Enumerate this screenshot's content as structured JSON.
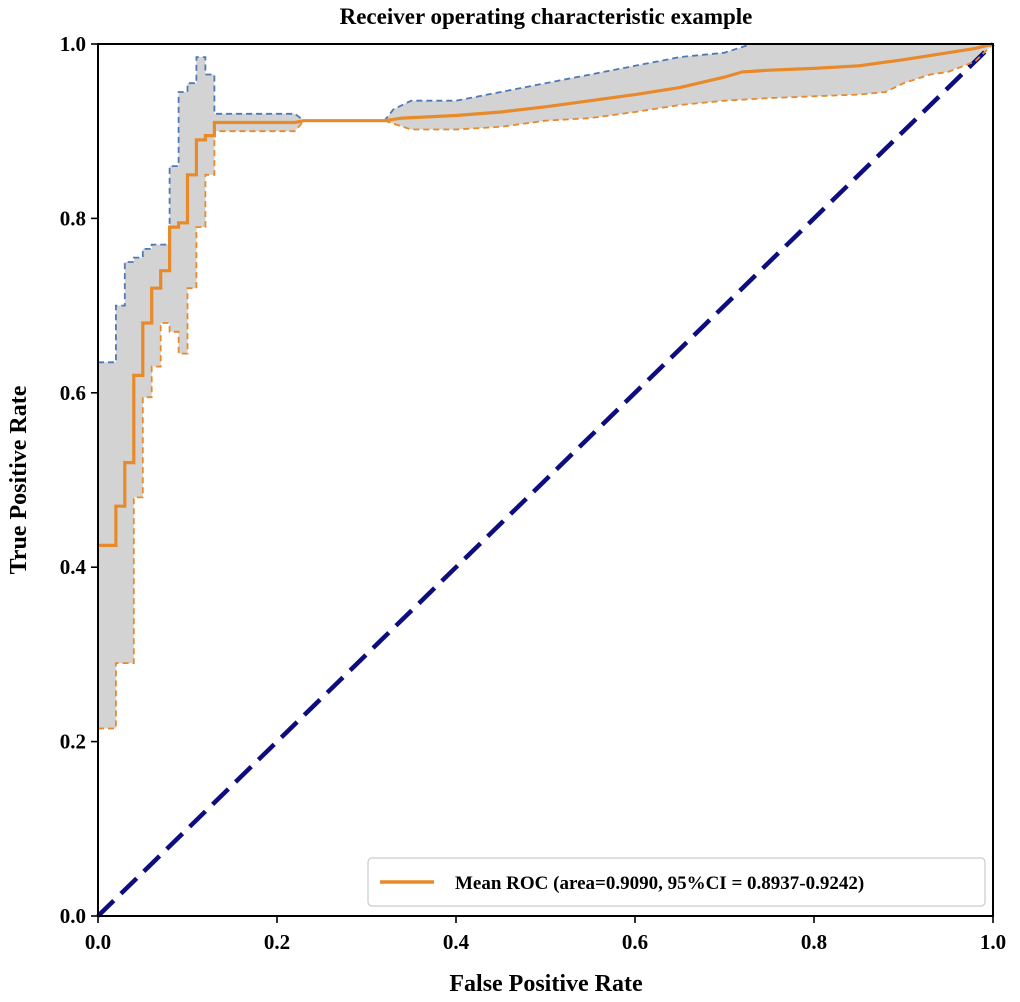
{
  "chart_data": {
    "type": "line",
    "title": "Receiver operating characteristic example",
    "xlabel": "False Positive Rate",
    "ylabel": "True Positive Rate",
    "xlim": [
      0,
      1
    ],
    "ylim": [
      0,
      1
    ],
    "xticks": [
      0.0,
      0.2,
      0.4,
      0.6,
      0.8,
      1.0
    ],
    "yticks": [
      0.0,
      0.2,
      0.4,
      0.6,
      0.8,
      1.0
    ],
    "x_tick_labels": [
      "0.0",
      "0.2",
      "0.4",
      "0.6",
      "0.8",
      "1.0"
    ],
    "y_tick_labels": [
      "0.0",
      "0.2",
      "0.4",
      "0.6",
      "0.8",
      "1.0"
    ],
    "grid": false,
    "legend": {
      "position": "bottom-right",
      "entries": [
        "Mean ROC (area=0.9090, 95%CI = 0.8937-0.9242)"
      ]
    },
    "colors": {
      "mean": "#e8892a",
      "upper": "#4e79b4",
      "lower": "#e8892a",
      "band": "#d3d3d3",
      "chance": "#0d0d80"
    },
    "series": [
      {
        "name": "Mean ROC (area=0.9090, 95%CI = 0.8937-0.9242)",
        "role": "mean",
        "x": [
          0,
          0.02,
          0.02,
          0.03,
          0.03,
          0.04,
          0.04,
          0.05,
          0.05,
          0.06,
          0.06,
          0.07,
          0.07,
          0.08,
          0.08,
          0.09,
          0.09,
          0.1,
          0.1,
          0.11,
          0.11,
          0.12,
          0.12,
          0.13,
          0.13,
          0.22,
          0.23,
          0.32,
          0.34,
          0.4,
          0.45,
          0.5,
          0.55,
          0.6,
          0.65,
          0.7,
          0.72,
          0.75,
          0.8,
          0.85,
          0.9,
          0.95,
          0.98,
          1.0
        ],
        "y": [
          0.425,
          0.425,
          0.47,
          0.47,
          0.52,
          0.52,
          0.62,
          0.62,
          0.68,
          0.68,
          0.72,
          0.72,
          0.74,
          0.74,
          0.79,
          0.79,
          0.795,
          0.795,
          0.85,
          0.85,
          0.89,
          0.89,
          0.895,
          0.895,
          0.91,
          0.91,
          0.912,
          0.912,
          0.915,
          0.918,
          0.922,
          0.928,
          0.935,
          0.942,
          0.95,
          0.962,
          0.968,
          0.97,
          0.972,
          0.975,
          0.982,
          0.99,
          0.995,
          1.0
        ]
      },
      {
        "name": "",
        "role": "upper",
        "x": [
          0,
          0.02,
          0.02,
          0.03,
          0.03,
          0.04,
          0.04,
          0.05,
          0.05,
          0.06,
          0.06,
          0.08,
          0.08,
          0.09,
          0.09,
          0.1,
          0.1,
          0.11,
          0.11,
          0.12,
          0.12,
          0.13,
          0.13,
          0.22,
          0.23,
          0.32,
          0.33,
          0.34,
          0.35,
          0.4,
          0.45,
          0.5,
          0.55,
          0.6,
          0.65,
          0.7,
          0.73,
          0.75,
          0.8,
          0.9,
          1.0
        ],
        "y": [
          0.635,
          0.635,
          0.7,
          0.7,
          0.75,
          0.75,
          0.755,
          0.755,
          0.765,
          0.765,
          0.77,
          0.77,
          0.86,
          0.86,
          0.945,
          0.945,
          0.955,
          0.955,
          0.985,
          0.985,
          0.965,
          0.965,
          0.92,
          0.92,
          0.912,
          0.912,
          0.925,
          0.93,
          0.935,
          0.935,
          0.945,
          0.955,
          0.965,
          0.975,
          0.985,
          0.99,
          1.0,
          1.0,
          1.0,
          1.0,
          1.0
        ]
      },
      {
        "name": "",
        "role": "lower",
        "x": [
          0,
          0.02,
          0.02,
          0.03,
          0.03,
          0.04,
          0.04,
          0.05,
          0.05,
          0.06,
          0.06,
          0.07,
          0.07,
          0.08,
          0.08,
          0.09,
          0.09,
          0.1,
          0.1,
          0.11,
          0.11,
          0.12,
          0.12,
          0.13,
          0.13,
          0.22,
          0.23,
          0.32,
          0.35,
          0.4,
          0.45,
          0.5,
          0.55,
          0.6,
          0.65,
          0.7,
          0.75,
          0.8,
          0.85,
          0.88,
          0.9,
          0.93,
          0.95,
          0.98,
          1.0
        ],
        "y": [
          0.215,
          0.215,
          0.29,
          0.29,
          0.29,
          0.29,
          0.48,
          0.48,
          0.595,
          0.595,
          0.63,
          0.63,
          0.68,
          0.68,
          0.67,
          0.67,
          0.645,
          0.645,
          0.72,
          0.72,
          0.79,
          0.79,
          0.85,
          0.85,
          0.9,
          0.9,
          0.912,
          0.912,
          0.902,
          0.902,
          0.905,
          0.912,
          0.915,
          0.922,
          0.93,
          0.935,
          0.938,
          0.94,
          0.942,
          0.945,
          0.955,
          0.965,
          0.968,
          0.98,
          1.0
        ]
      },
      {
        "name": "",
        "role": "chance",
        "x": [
          0,
          1
        ],
        "y": [
          0,
          1
        ]
      }
    ]
  }
}
